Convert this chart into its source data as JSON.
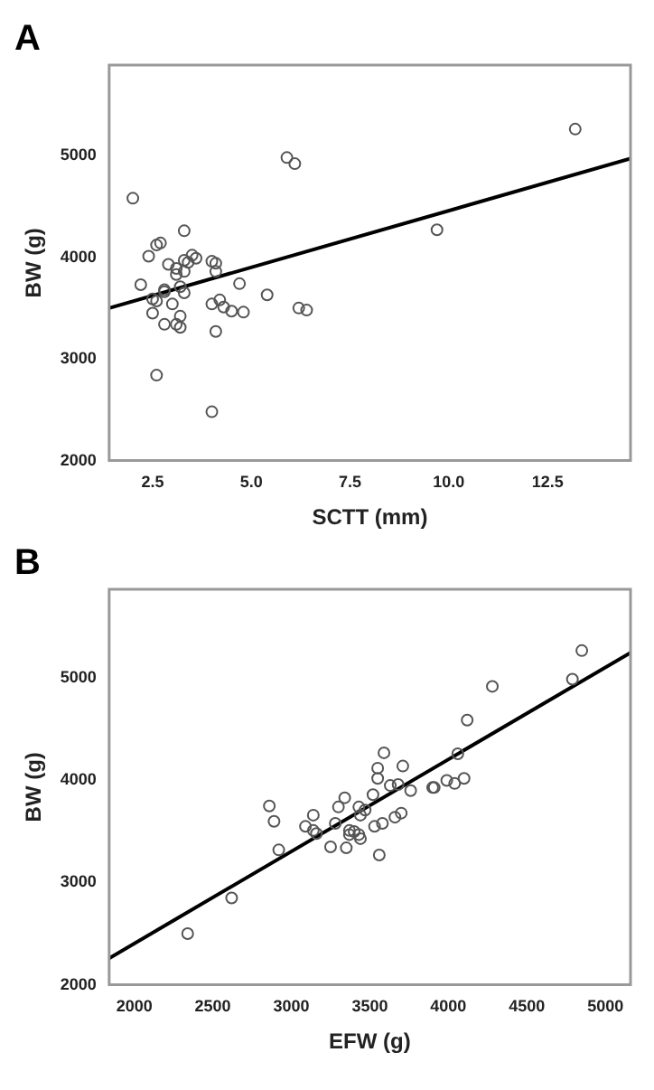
{
  "chart_data": [
    {
      "type": "scatter",
      "title": "A",
      "xlabel": "SCTT (mm)",
      "ylabel": "BW (g)",
      "xlim": [
        1.4,
        14.6
      ],
      "ylim": [
        2000,
        5890
      ],
      "xticks": [
        2.5,
        {
          "value": 5,
          "label": "5.0"
        },
        7.5,
        {
          "value": 10,
          "label": "10.0"
        },
        12.5
      ],
      "yticks": [
        2000,
        3000,
        4000,
        5000
      ],
      "grid": false,
      "legend": false,
      "marker": "circle",
      "series": [
        {
          "color": "#555555",
          "x": [
            2.0,
            13.2,
            5.9,
            6.1,
            9.7,
            2.4,
            3.3,
            2.6,
            2.7,
            2.9,
            3.1,
            3.1,
            3.3,
            3.3,
            3.4,
            3.5,
            3.6,
            4.0,
            4.1,
            4.1,
            2.2,
            2.8,
            2.8,
            3.2,
            3.3,
            2.5,
            2.6,
            3.0,
            2.5,
            2.8,
            3.1,
            3.2,
            3.2,
            4.0,
            4.2,
            4.3,
            4.5,
            4.8,
            4.7,
            5.4,
            6.2,
            6.4,
            4.1,
            2.6,
            4.0
          ],
          "values": [
            4580,
            5260,
            4980,
            4920,
            4270,
            4010,
            4260,
            4120,
            4140,
            3930,
            3890,
            3830,
            3860,
            3970,
            3950,
            4020,
            3990,
            3960,
            3940,
            3860,
            3730,
            3680,
            3660,
            3710,
            3650,
            3590,
            3570,
            3540,
            3450,
            3340,
            3340,
            3420,
            3310,
            3540,
            3580,
            3510,
            3470,
            3460,
            3740,
            3630,
            3500,
            3480,
            3270,
            2840,
            2480
          ]
        },
        {
          "type": "line",
          "marker": "none",
          "color": "#000000",
          "x": [
            1.4,
            14.6
          ],
          "values": [
            3500,
            4970
          ]
        }
      ]
    },
    {
      "type": "scatter",
      "title": "B",
      "xlabel": "EFW (g)",
      "ylabel": "BW (g)",
      "xlim": [
        1840,
        5160
      ],
      "ylim": [
        2000,
        5870
      ],
      "xticks": [
        2000,
        2500,
        3000,
        3500,
        4000,
        4500,
        5000
      ],
      "yticks": [
        2000,
        3000,
        4000,
        5000
      ],
      "grid": false,
      "legend": false,
      "marker": "circle",
      "series": [
        {
          "color": "#555555",
          "x": [
            2340,
            2620,
            2920,
            2890,
            2860,
            3090,
            3140,
            3140,
            3160,
            3250,
            3280,
            3300,
            3340,
            3350,
            3370,
            3370,
            3400,
            3430,
            3440,
            3430,
            3440,
            3470,
            3520,
            3530,
            3550,
            3550,
            3580,
            3560,
            3590,
            3630,
            3660,
            3680,
            3700,
            3710,
            3760,
            3900,
            3910,
            3990,
            4040,
            4060,
            4100,
            4120,
            4280,
            4790,
            4850
          ],
          "values": [
            2500,
            2850,
            3320,
            3600,
            3750,
            3550,
            3660,
            3510,
            3480,
            3350,
            3580,
            3740,
            3830,
            3340,
            3510,
            3470,
            3500,
            3470,
            3430,
            3740,
            3660,
            3710,
            3860,
            3550,
            4120,
            4020,
            3580,
            3270,
            4270,
            3950,
            3640,
            3960,
            3680,
            4140,
            3900,
            3930,
            3930,
            4000,
            3970,
            4260,
            4020,
            4590,
            4920,
            4990,
            5270
          ]
        },
        {
          "type": "line",
          "marker": "none",
          "color": "#000000",
          "x": [
            1840,
            5160
          ],
          "values": [
            2260,
            5250
          ]
        }
      ]
    }
  ]
}
